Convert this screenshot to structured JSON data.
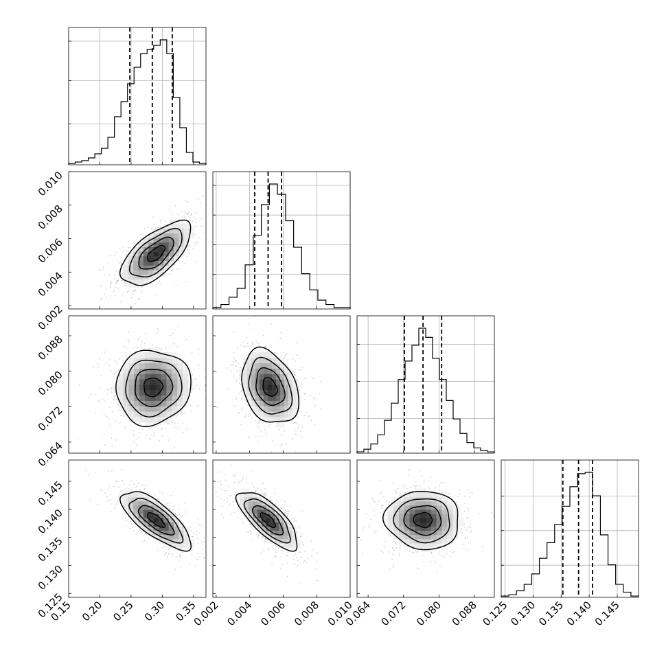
{
  "chart_data": {
    "type": "scatter",
    "parameters": [
      {
        "range": [
          0.15,
          0.37
        ],
        "ticks": [
          "0.15",
          "0.20",
          "0.25",
          "0.30",
          "0.35"
        ],
        "tick_values": [
          0.15,
          0.2,
          0.25,
          0.3,
          0.35
        ],
        "quantiles": [
          0.248,
          0.284,
          0.316
        ],
        "histogram_counts": [
          1,
          2,
          3,
          5,
          8,
          12,
          20,
          35,
          46,
          59,
          71,
          81,
          84,
          87,
          91,
          81,
          49,
          27,
          9,
          2,
          1
        ]
      },
      {
        "range": [
          0.0018,
          0.01
        ],
        "ticks": [
          "0.002",
          "0.004",
          "0.006",
          "0.008",
          "0.010"
        ],
        "tick_values": [
          0.002,
          0.004,
          0.006,
          0.008,
          0.01
        ],
        "quantiles": [
          0.0043,
          0.0051,
          0.0059
        ],
        "histogram_counts": [
          1,
          3,
          8,
          14,
          30,
          50,
          71,
          85,
          78,
          60,
          42,
          24,
          13,
          6,
          3,
          1,
          1
        ]
      },
      {
        "range": [
          0.0615,
          0.0925
        ],
        "ticks": [
          "0.064",
          "0.072",
          "0.080",
          "0.088"
        ],
        "tick_values": [
          0.064,
          0.072,
          0.08,
          0.088
        ],
        "quantiles": [
          0.0722,
          0.0764,
          0.0806
        ],
        "histogram_counts": [
          1,
          3,
          7,
          14,
          25,
          38,
          56,
          70,
          82,
          95,
          88,
          72,
          56,
          40,
          26,
          15,
          8,
          4,
          2,
          1
        ]
      },
      {
        "range": [
          0.1243,
          0.1488
        ],
        "ticks": [
          "0.125",
          "0.130",
          "0.135",
          "0.140",
          "0.145"
        ],
        "tick_values": [
          0.125,
          0.13,
          0.135,
          0.14,
          0.145
        ],
        "quantiles": [
          0.1353,
          0.1381,
          0.1406
        ],
        "histogram_counts": [
          1,
          2,
          5,
          10,
          18,
          30,
          42,
          56,
          70,
          85,
          95,
          96,
          78,
          48,
          25,
          10,
          4,
          1
        ]
      }
    ],
    "histogram_y_ticks": [
      [
        0.33,
        0.68,
        1.0
      ],
      [
        0.28,
        0.52,
        0.76,
        1.0
      ],
      [
        0.28,
        0.58,
        0.88
      ],
      [
        0.26,
        0.54,
        0.82
      ]
    ],
    "pair_panels": [
      {
        "x": 0,
        "y": 1,
        "center": [
          0.29,
          0.0051
        ],
        "spread": [
          0.028,
          0.00095
        ],
        "correlation": 0.65
      },
      {
        "x": 0,
        "y": 2,
        "center": [
          0.285,
          0.0764
        ],
        "spread": [
          0.03,
          0.0042
        ],
        "correlation": 0.05
      },
      {
        "x": 1,
        "y": 2,
        "center": [
          0.0052,
          0.0764
        ],
        "spread": [
          0.00085,
          0.0042
        ],
        "correlation": -0.3
      },
      {
        "x": 0,
        "y": 3,
        "center": [
          0.29,
          0.1381
        ],
        "spread": [
          0.028,
          0.0026
        ],
        "correlation": -0.75
      },
      {
        "x": 1,
        "y": 3,
        "center": [
          0.0051,
          0.1381
        ],
        "spread": [
          0.0009,
          0.0026
        ],
        "correlation": -0.75
      },
      {
        "x": 2,
        "y": 3,
        "center": [
          0.0764,
          0.1381
        ],
        "spread": [
          0.0042,
          0.0026
        ],
        "correlation": -0.05
      }
    ],
    "contour_levels": [
      0.5,
      1.0,
      1.5,
      2.0
    ],
    "grid": true,
    "title": "",
    "xlabel": "",
    "ylabel": ""
  }
}
